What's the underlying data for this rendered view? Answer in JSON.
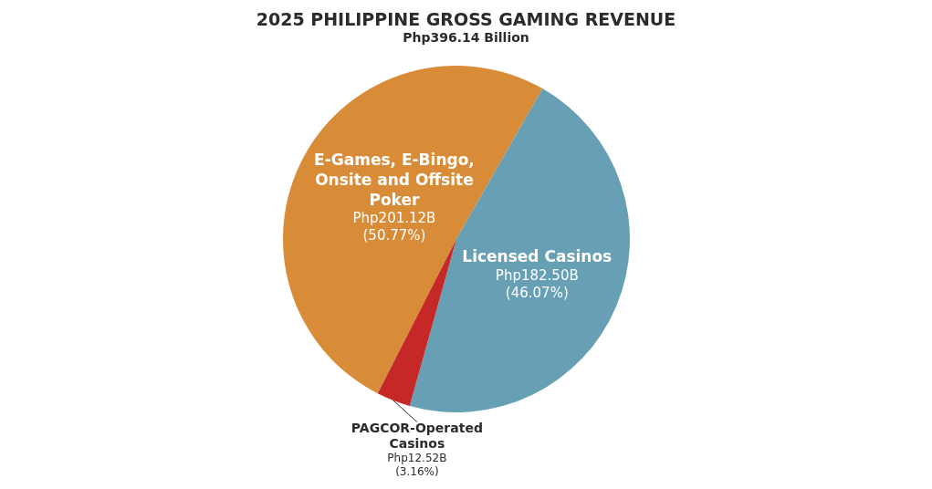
{
  "chart_data": {
    "type": "pie",
    "title": "2025 PHILIPPINE GROSS GAMING REVENUE",
    "subtitle": "Php396.14 Billion",
    "categories": [
      "E-Games, E-Bingo, Onsite and Offsite Poker",
      "Licensed Casinos",
      "PAGCOR-Operated Casinos"
    ],
    "values": [
      50.77,
      46.07,
      3.16
    ],
    "value_labels": [
      "Php201.12B\n(50.77%)",
      "Php182.50B\n(46.07%)",
      "Php12.52B\n(3.16%)"
    ],
    "colors": [
      "#d98c38",
      "#67a0b4",
      "#c62828"
    ]
  }
}
